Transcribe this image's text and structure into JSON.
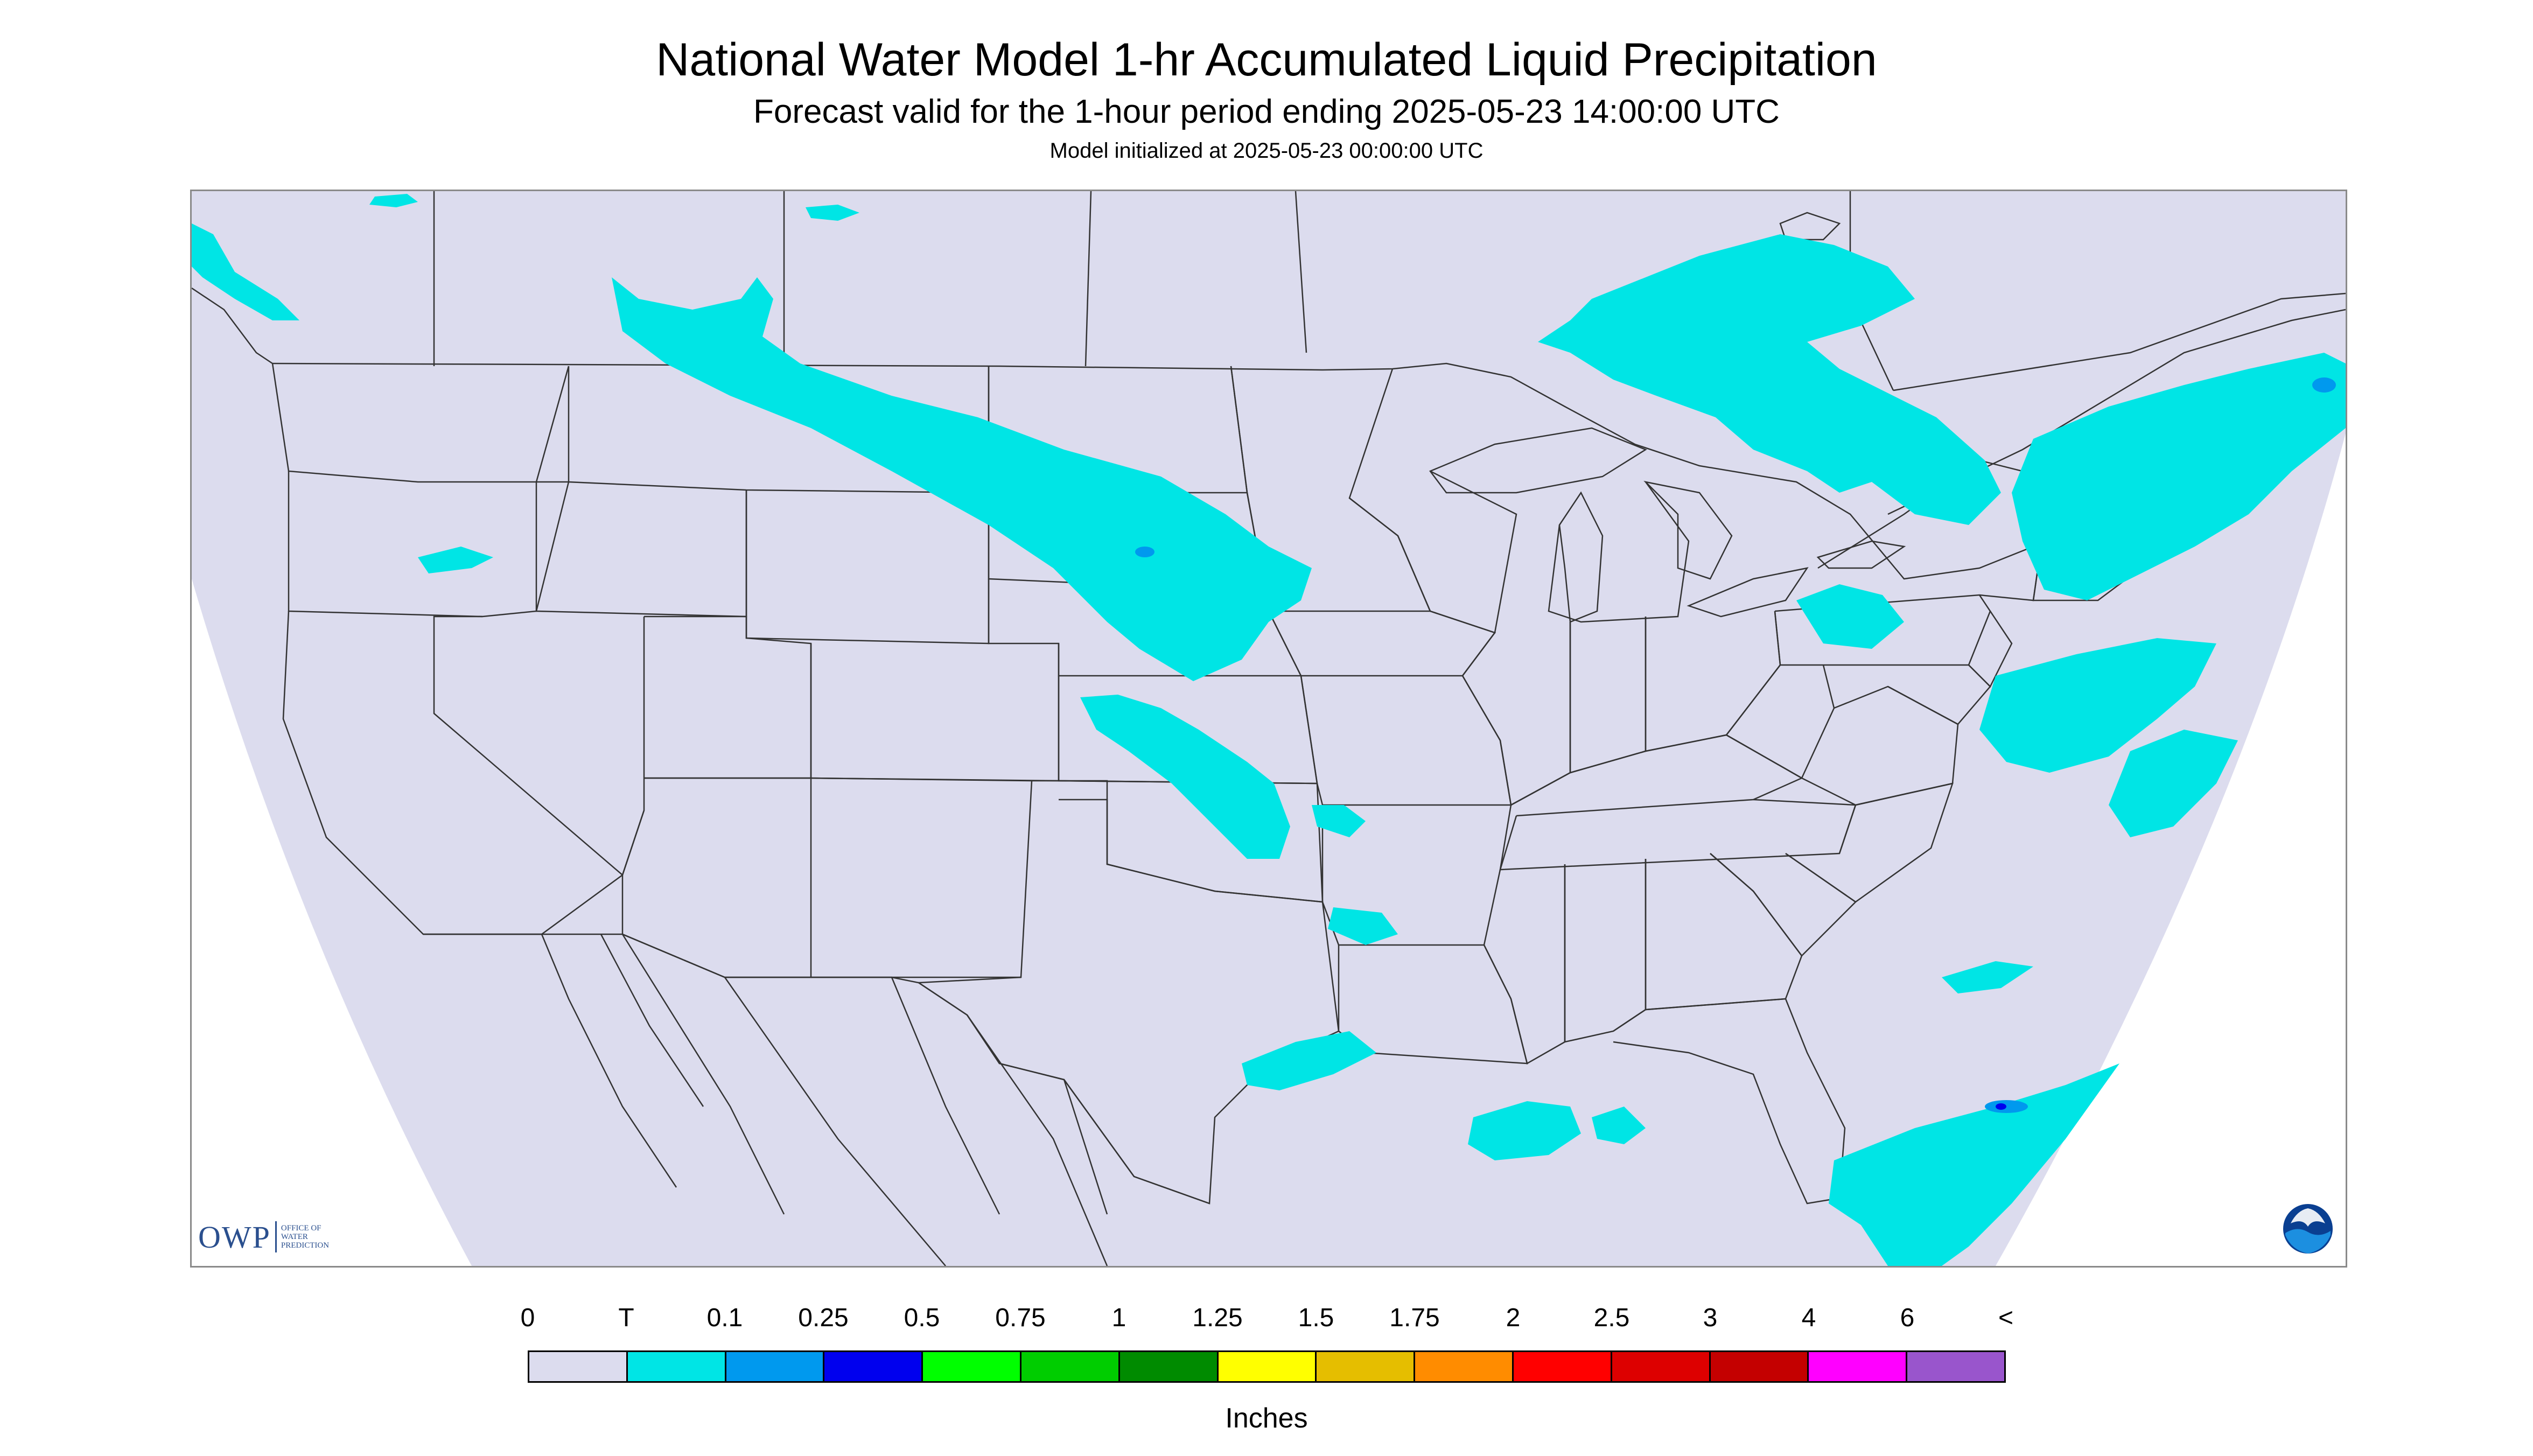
{
  "map": {
    "title": "National Water Model 1-hr Accumulated Liquid Precipitation",
    "subtitle": "Forecast valid for the 1-hour period ending 2025-05-23 14:00:00 UTC",
    "init_line": "Model initialized at 2025-05-23 00:00:00 UTC",
    "region": "Continental United States",
    "projection": "Lambert Conformal",
    "background_color": "#dcdcee",
    "outside_domain_color": "#ffffff",
    "boundary_color": "#333333"
  },
  "logos": {
    "owp_mark": "OWP",
    "owp_text": [
      "Office of",
      "Water",
      "Prediction"
    ],
    "noaa_mark": "NOAA"
  },
  "legend": {
    "unit": "Inches",
    "labels": [
      "0",
      "T",
      "0.1",
      "0.25",
      "0.5",
      "0.75",
      "1",
      "1.25",
      "1.5",
      "1.75",
      "2",
      "2.5",
      "3",
      "4",
      "6",
      "<"
    ],
    "colors": [
      "#dcdcee",
      "#00e5e5",
      "#0099ee",
      "#0000ee",
      "#00ff00",
      "#00cd00",
      "#008b00",
      "#ffff00",
      "#e5be00",
      "#ff8c00",
      "#ff0000",
      "#dd0000",
      "#c40000",
      "#ff00ff",
      "#9955cc"
    ]
  },
  "precip_areas": [
    {
      "region": "Northern Rockies to Nebraska",
      "category": "T",
      "color": "#00e5e5"
    },
    {
      "region": "Kansas to Oklahoma",
      "category": "T",
      "color": "#00e5e5"
    },
    {
      "region": "Southern Ontario and Great Lakes",
      "category": "T",
      "color": "#00e5e5"
    },
    {
      "region": "New England and New York",
      "category": "T",
      "color": "#00e5e5"
    },
    {
      "region": "Mid-Atlantic coastal waters",
      "category": "T",
      "color": "#00e5e5"
    },
    {
      "region": "Florida and the Bahamas",
      "category": "T to 0.1",
      "color": "#00e5e5"
    },
    {
      "region": "Gulf of Mexico coast",
      "category": "T",
      "color": "#00e5e5"
    },
    {
      "region": "Pacific Northwest",
      "category": "T",
      "color": "#00e5e5"
    }
  ]
}
